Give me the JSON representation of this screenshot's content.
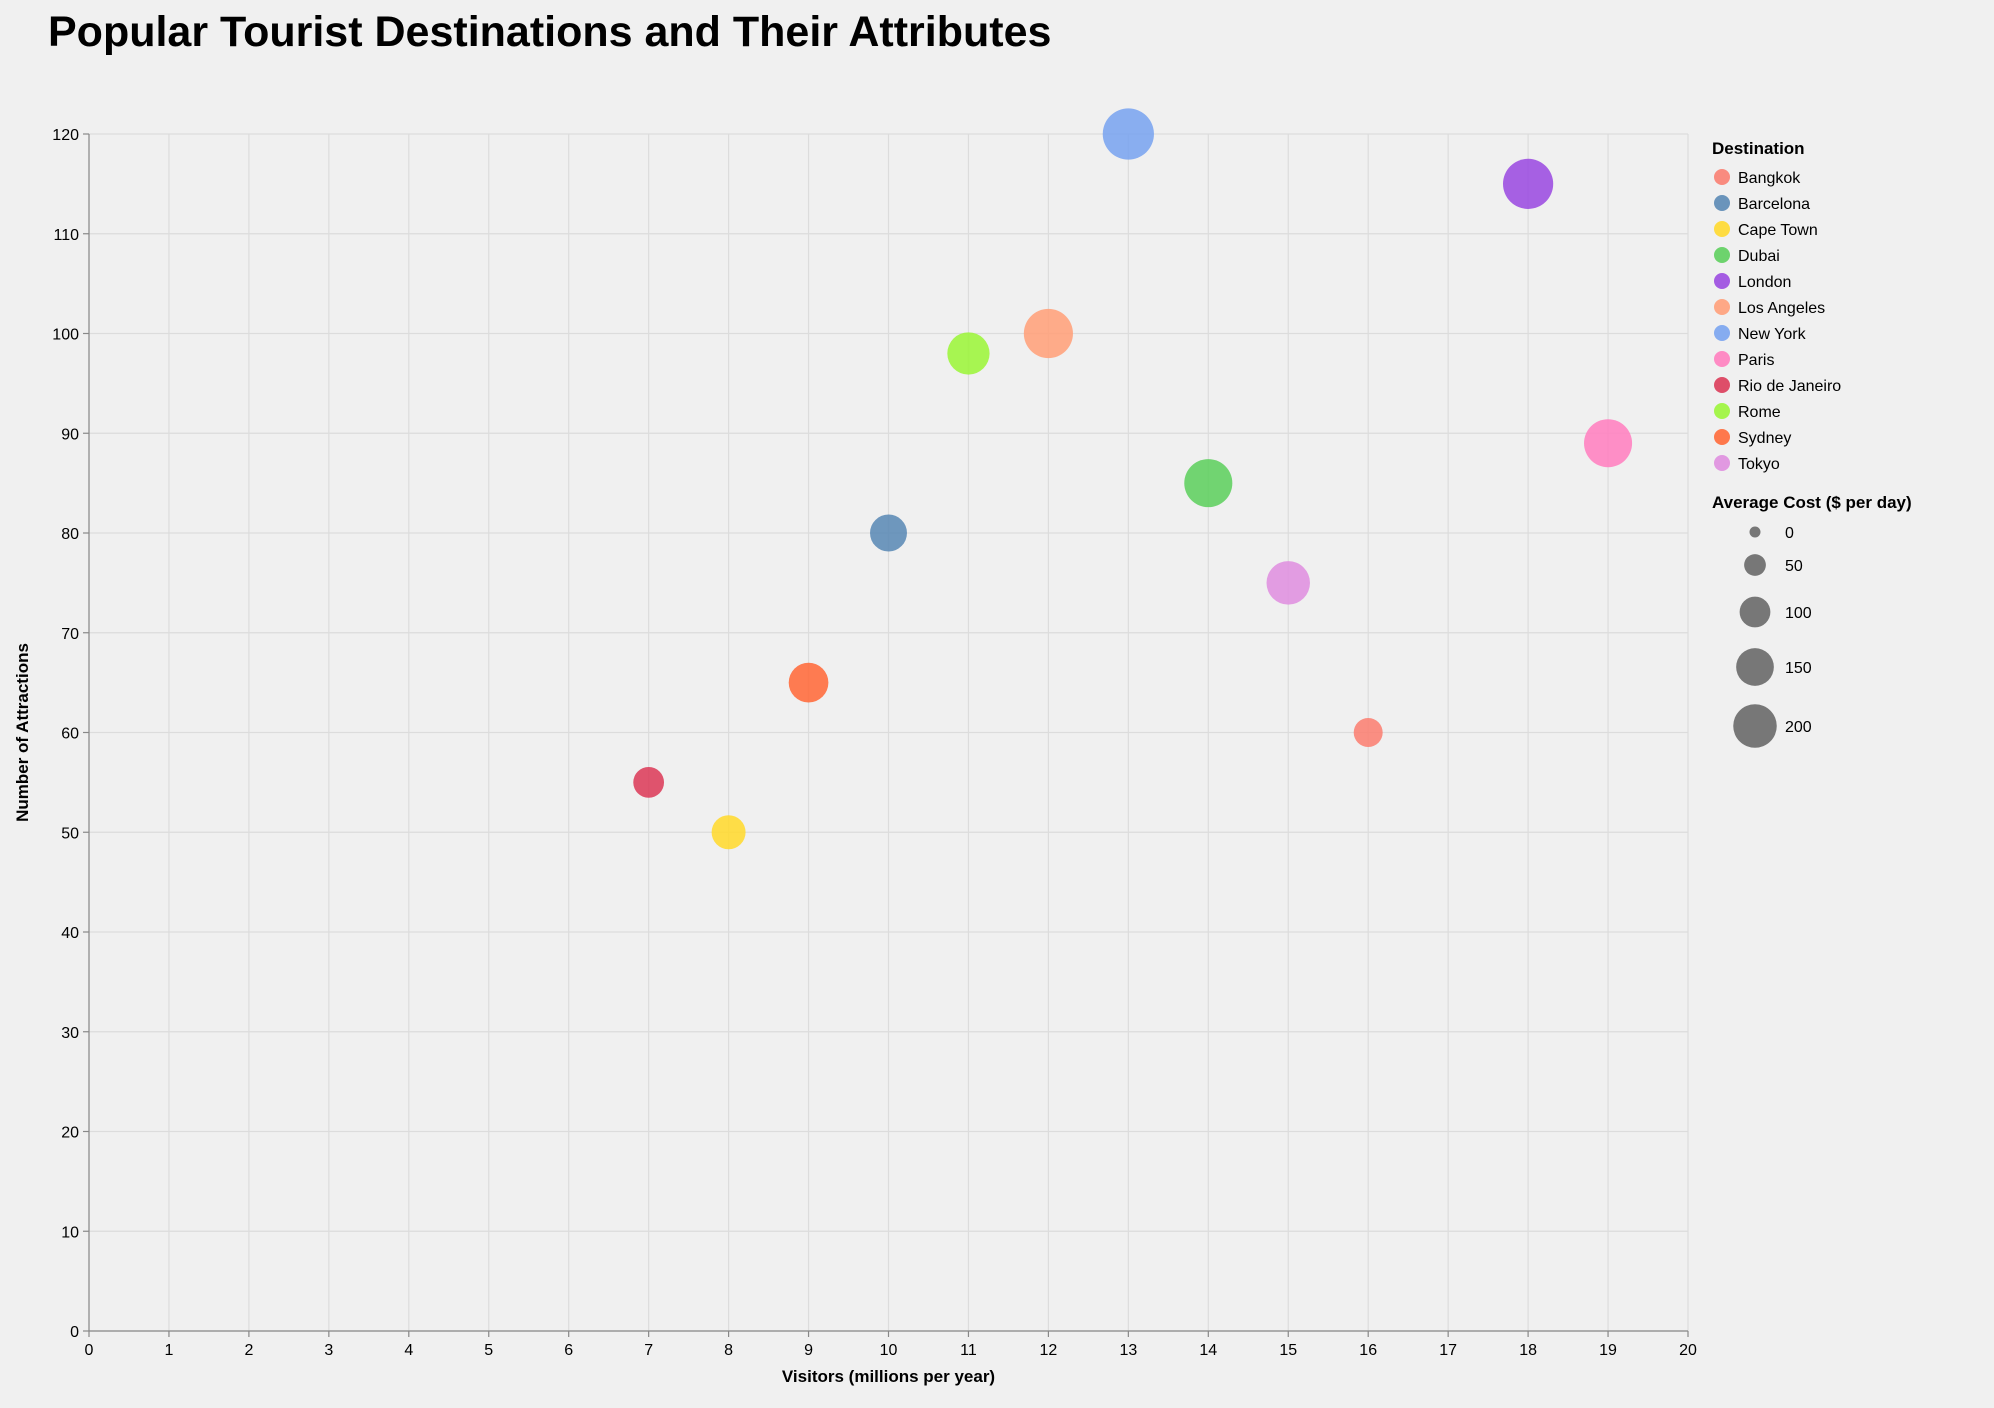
{
  "chart_data": {
    "type": "scatter",
    "title": "Popular Tourist Destinations and Their Attributes",
    "xlabel": "Visitors (millions per year)",
    "ylabel": "Number of Attractions",
    "xlim": [
      0,
      20
    ],
    "ylim": [
      0,
      120
    ],
    "x_ticks": [
      "0",
      "1",
      "2",
      "3",
      "4",
      "5",
      "6",
      "7",
      "8",
      "9",
      "10",
      "11",
      "12",
      "13",
      "14",
      "15",
      "16",
      "17",
      "18",
      "19",
      "20"
    ],
    "y_ticks": [
      "0",
      "10",
      "20",
      "30",
      "40",
      "50",
      "60",
      "70",
      "80",
      "90",
      "100",
      "110",
      "120"
    ],
    "grid": true,
    "color_legend": {
      "title": "Destination",
      "placement": "right",
      "entries": [
        {
          "name": "Bangkok",
          "color": "#fa8072"
        },
        {
          "name": "Barcelona",
          "color": "#5b8ab5"
        },
        {
          "name": "Cape Town",
          "color": "#ffd92f"
        },
        {
          "name": "Dubai",
          "color": "#5ecf5e"
        },
        {
          "name": "London",
          "color": "#9b4be0"
        },
        {
          "name": "Los Angeles",
          "color": "#ffa07a"
        },
        {
          "name": "New York",
          "color": "#7aa4ef"
        },
        {
          "name": "Paris",
          "color": "#ff7fbf"
        },
        {
          "name": "Rio de Janeiro",
          "color": "#dc3c5a"
        },
        {
          "name": "Rome",
          "color": "#9cf53a"
        },
        {
          "name": "Sydney",
          "color": "#ff6a3a"
        },
        {
          "name": "Tokyo",
          "color": "#df8fdf"
        }
      ]
    },
    "size_legend": {
      "title": "Average Cost ($ per day)",
      "values": [
        "0",
        "50",
        "100",
        "150",
        "200"
      ]
    },
    "points": [
      {
        "destination": "Bangkok",
        "visitors": 16,
        "attractions": 60,
        "avg_cost": 80
      },
      {
        "destination": "Barcelona",
        "visitors": 10,
        "attractions": 80,
        "avg_cost": 130
      },
      {
        "destination": "Cape Town",
        "visitors": 8,
        "attractions": 50,
        "avg_cost": 110
      },
      {
        "destination": "Dubai",
        "visitors": 14,
        "attractions": 85,
        "avg_cost": 220
      },
      {
        "destination": "London",
        "visitors": 18,
        "attractions": 115,
        "avg_cost": 240
      },
      {
        "destination": "Los Angeles",
        "visitors": 12,
        "attractions": 100,
        "avg_cost": 230
      },
      {
        "destination": "New York",
        "visitors": 13,
        "attractions": 120,
        "avg_cost": 250
      },
      {
        "destination": "Paris",
        "visitors": 19,
        "attractions": 89,
        "avg_cost": 220
      },
      {
        "destination": "Rio de Janeiro",
        "visitors": 7,
        "attractions": 55,
        "avg_cost": 90
      },
      {
        "destination": "Rome",
        "visitors": 11,
        "attractions": 98,
        "avg_cost": 170
      },
      {
        "destination": "Sydney",
        "visitors": 9,
        "attractions": 65,
        "avg_cost": 150
      },
      {
        "destination": "Tokyo",
        "visitors": 15,
        "attractions": 75,
        "avg_cost": 180
      }
    ]
  }
}
